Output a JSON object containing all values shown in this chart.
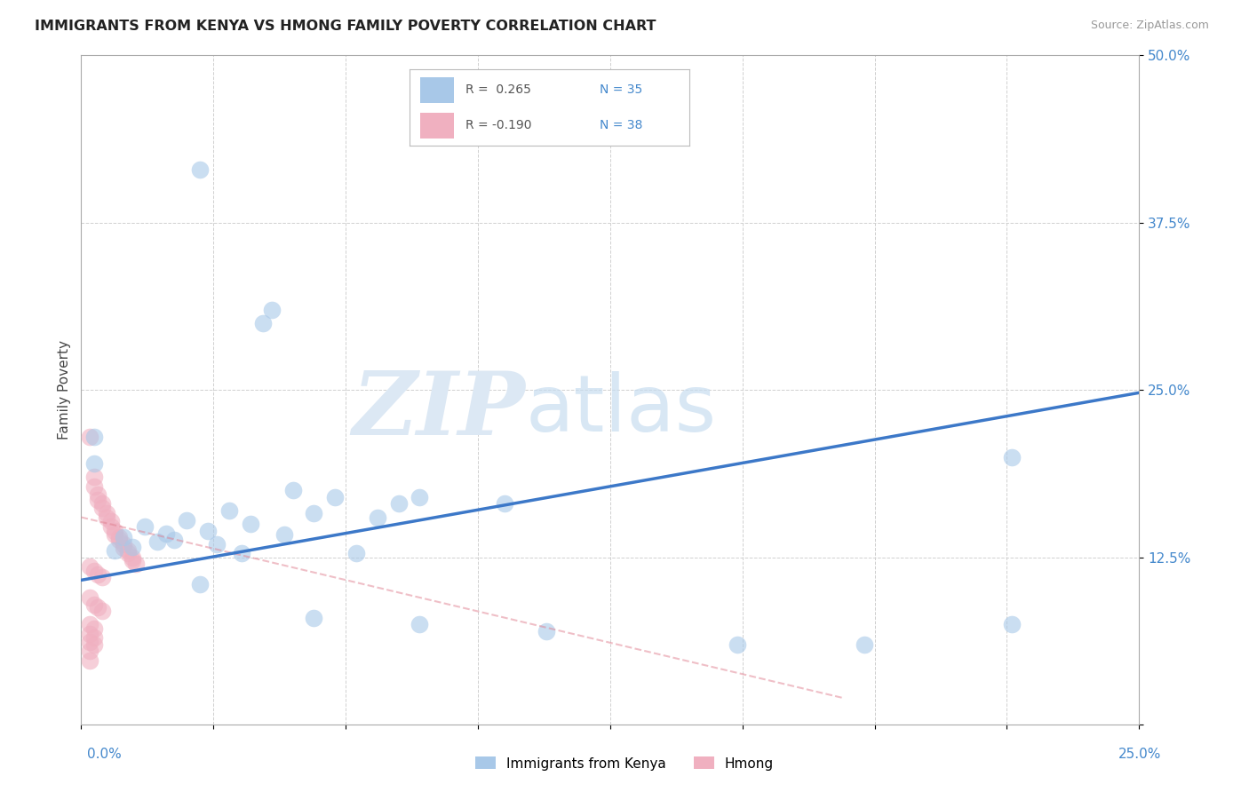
{
  "title": "IMMIGRANTS FROM KENYA VS HMONG FAMILY POVERTY CORRELATION CHART",
  "source": "Source: ZipAtlas.com",
  "ylabel": "Family Poverty",
  "xlim": [
    0.0,
    0.25
  ],
  "ylim": [
    0.0,
    0.5
  ],
  "yticks": [
    0.0,
    0.125,
    0.25,
    0.375,
    0.5
  ],
  "ytick_labels": [
    "",
    "12.5%",
    "25.0%",
    "37.5%",
    "50.0%"
  ],
  "kenya_scatter": [
    [
      0.028,
      0.415
    ],
    [
      0.045,
      0.31
    ],
    [
      0.043,
      0.3
    ],
    [
      0.003,
      0.215
    ],
    [
      0.003,
      0.195
    ],
    [
      0.05,
      0.175
    ],
    [
      0.06,
      0.17
    ],
    [
      0.075,
      0.165
    ],
    [
      0.035,
      0.16
    ],
    [
      0.055,
      0.158
    ],
    [
      0.07,
      0.155
    ],
    [
      0.025,
      0.153
    ],
    [
      0.04,
      0.15
    ],
    [
      0.015,
      0.148
    ],
    [
      0.03,
      0.145
    ],
    [
      0.02,
      0.143
    ],
    [
      0.048,
      0.142
    ],
    [
      0.01,
      0.14
    ],
    [
      0.022,
      0.138
    ],
    [
      0.018,
      0.137
    ],
    [
      0.032,
      0.135
    ],
    [
      0.012,
      0.133
    ],
    [
      0.008,
      0.13
    ],
    [
      0.038,
      0.128
    ],
    [
      0.065,
      0.128
    ],
    [
      0.028,
      0.105
    ],
    [
      0.08,
      0.17
    ],
    [
      0.1,
      0.165
    ],
    [
      0.055,
      0.08
    ],
    [
      0.08,
      0.075
    ],
    [
      0.11,
      0.07
    ],
    [
      0.155,
      0.06
    ],
    [
      0.185,
      0.06
    ],
    [
      0.22,
      0.2
    ],
    [
      0.22,
      0.075
    ]
  ],
  "hmong_scatter": [
    [
      0.002,
      0.215
    ],
    [
      0.003,
      0.185
    ],
    [
      0.003,
      0.178
    ],
    [
      0.004,
      0.172
    ],
    [
      0.004,
      0.168
    ],
    [
      0.005,
      0.165
    ],
    [
      0.005,
      0.162
    ],
    [
      0.006,
      0.158
    ],
    [
      0.006,
      0.155
    ],
    [
      0.007,
      0.152
    ],
    [
      0.007,
      0.148
    ],
    [
      0.008,
      0.145
    ],
    [
      0.008,
      0.142
    ],
    [
      0.009,
      0.14
    ],
    [
      0.009,
      0.138
    ],
    [
      0.01,
      0.135
    ],
    [
      0.01,
      0.132
    ],
    [
      0.011,
      0.13
    ],
    [
      0.011,
      0.128
    ],
    [
      0.012,
      0.125
    ],
    [
      0.012,
      0.123
    ],
    [
      0.013,
      0.12
    ],
    [
      0.002,
      0.118
    ],
    [
      0.003,
      0.115
    ],
    [
      0.004,
      0.112
    ],
    [
      0.005,
      0.11
    ],
    [
      0.002,
      0.095
    ],
    [
      0.003,
      0.09
    ],
    [
      0.004,
      0.088
    ],
    [
      0.005,
      0.085
    ],
    [
      0.002,
      0.075
    ],
    [
      0.003,
      0.072
    ],
    [
      0.002,
      0.068
    ],
    [
      0.003,
      0.065
    ],
    [
      0.002,
      0.062
    ],
    [
      0.003,
      0.06
    ],
    [
      0.002,
      0.055
    ],
    [
      0.002,
      0.048
    ]
  ],
  "kenya_line": {
    "x": [
      0.0,
      0.25
    ],
    "y": [
      0.108,
      0.248
    ]
  },
  "hmong_line": {
    "x": [
      0.0,
      0.18
    ],
    "y": [
      0.155,
      0.02
    ]
  },
  "kenya_color": "#a8c8e8",
  "hmong_color": "#f0b0c0",
  "kenya_line_color": "#3c78c8",
  "hmong_line_color": "#e08090",
  "background_color": "#ffffff",
  "grid_color": "#d0d0d0",
  "legend_top": [
    {
      "label": "R =  0.265",
      "N_label": "N = 35",
      "color": "#a8c8e8"
    },
    {
      "label": "R = -0.190",
      "N_label": "N = 38",
      "color": "#f0b0c0"
    }
  ],
  "legend_bottom": [
    {
      "label": "Immigrants from Kenya",
      "color": "#a8c8e8"
    },
    {
      "label": "Hmong",
      "color": "#f0b0c0"
    }
  ]
}
